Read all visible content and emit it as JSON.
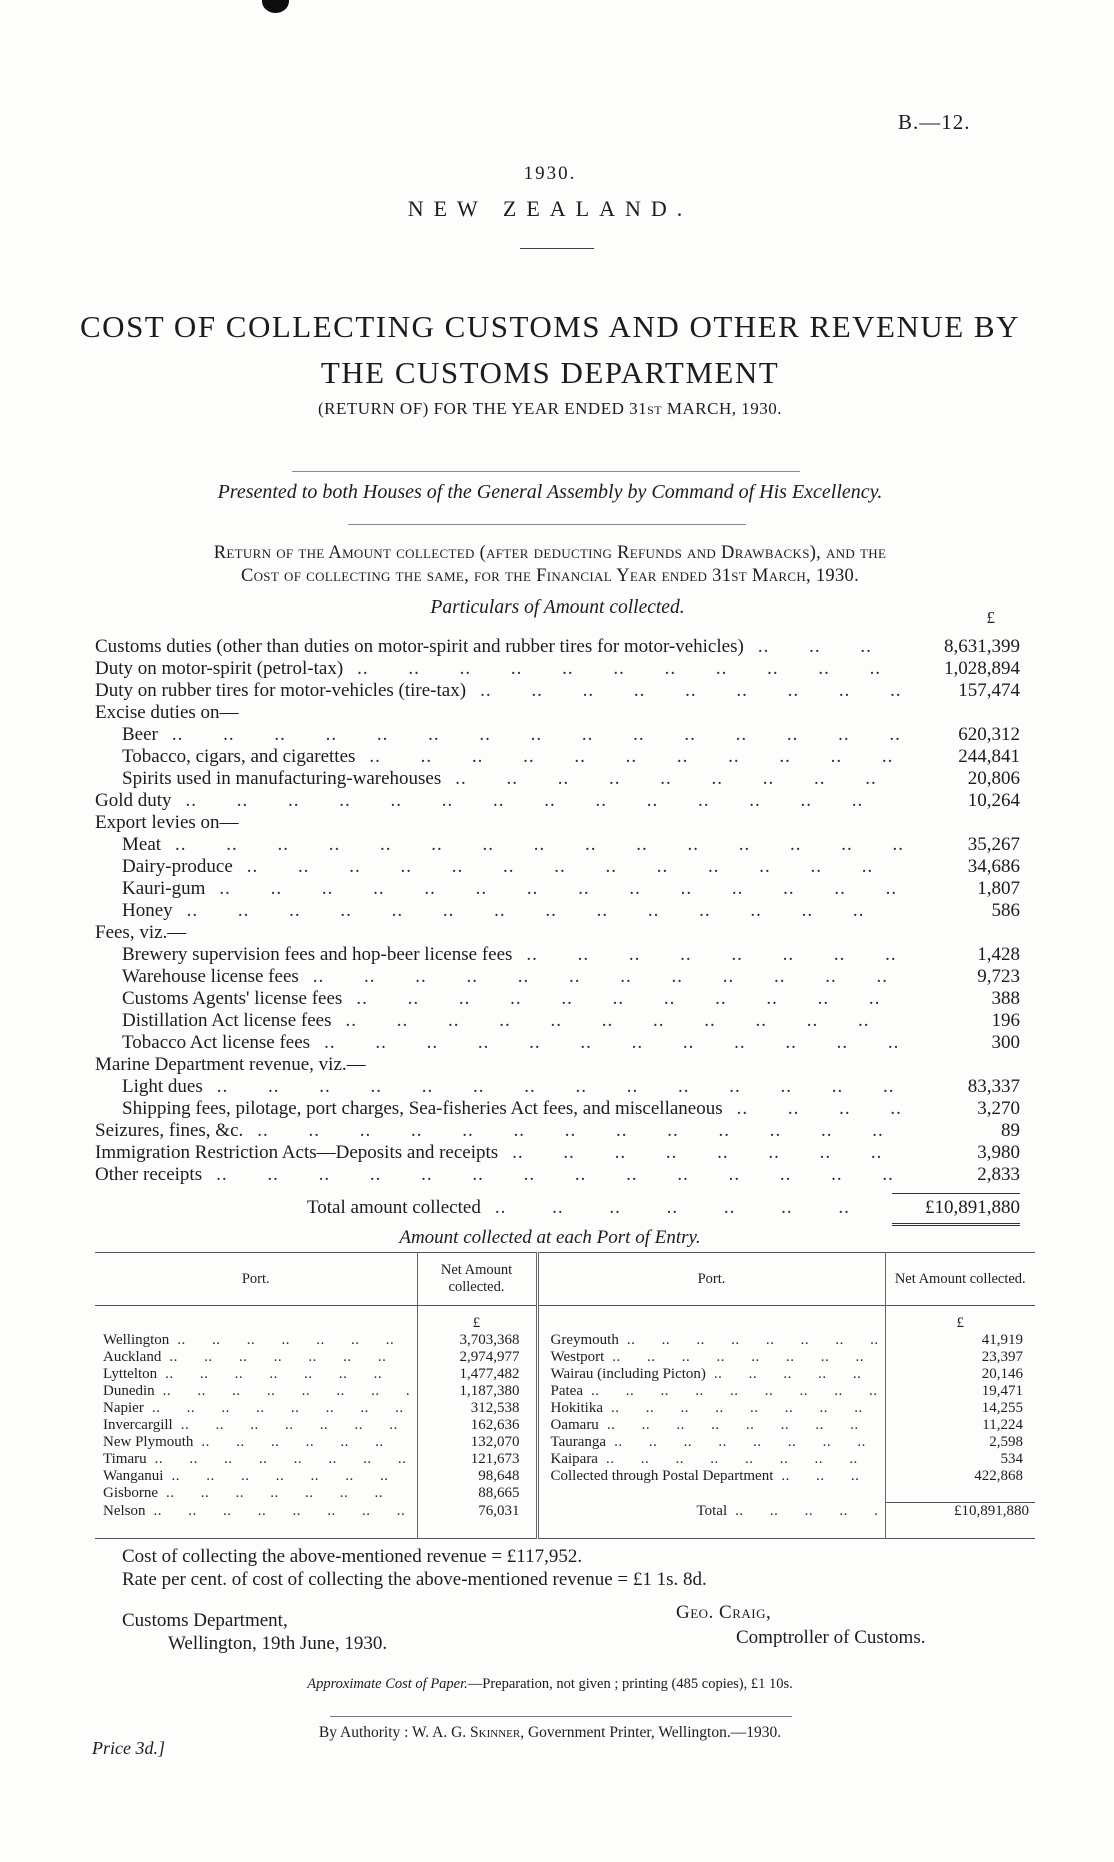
{
  "header": {
    "doc_ref": "B.—12.",
    "year": "1930.",
    "country": "NEW ZEALAND.",
    "title_line1": "COST OF COLLECTING CUSTOMS AND OTHER REVENUE BY",
    "title_line2": "THE CUSTOMS DEPARTMENT",
    "subtitle": "(RETURN OF) FOR THE YEAR ENDED 31st MARCH, 1930.",
    "presented": "Presented to both Houses of the General Assembly by Command of His Excellency."
  },
  "return_heading": {
    "line1": "Return of the Amount collected (after deducting Refunds and Drawbacks), and the",
    "line2": "Cost of collecting the same, for the Financial Year ended 31st March, 1930."
  },
  "particulars": {
    "heading": "Particulars of Amount collected.",
    "currency_symbol": "£",
    "rows": [
      {
        "label": "Customs duties (other than duties on motor-spirit and rubber tires for motor-vehicles)",
        "value": "8,631,399",
        "indent": 0
      },
      {
        "label": "Duty on motor-spirit (petrol-tax)",
        "value": "1,028,894",
        "indent": 0
      },
      {
        "label": "Duty on rubber tires for motor-vehicles (tire-tax)",
        "value": "157,474",
        "indent": 0
      },
      {
        "label": "Excise duties on—",
        "value": "",
        "indent": 0
      },
      {
        "label": "Beer",
        "value": "620,312",
        "indent": 1
      },
      {
        "label": "Tobacco, cigars, and cigarettes",
        "value": "244,841",
        "indent": 1
      },
      {
        "label": "Spirits used in manufacturing-warehouses",
        "value": "20,806",
        "indent": 1
      },
      {
        "label": "Gold duty",
        "value": "10,264",
        "indent": 0
      },
      {
        "label": "Export levies on—",
        "value": "",
        "indent": 0
      },
      {
        "label": "Meat",
        "value": "35,267",
        "indent": 1
      },
      {
        "label": "Dairy-produce",
        "value": "34,686",
        "indent": 1
      },
      {
        "label": "Kauri-gum",
        "value": "1,807",
        "indent": 1
      },
      {
        "label": "Honey",
        "value": "586",
        "indent": 1
      },
      {
        "label": "Fees, viz.—",
        "value": "",
        "indent": 0
      },
      {
        "label": "Brewery supervision fees and hop-beer license fees",
        "value": "1,428",
        "indent": 1
      },
      {
        "label": "Warehouse license fees",
        "value": "9,723",
        "indent": 1
      },
      {
        "label": "Customs Agents' license fees",
        "value": "388",
        "indent": 1
      },
      {
        "label": "Distillation Act license fees",
        "value": "196",
        "indent": 1
      },
      {
        "label": "Tobacco Act license fees",
        "value": "300",
        "indent": 1
      },
      {
        "label": "Marine Department revenue, viz.—",
        "value": "",
        "indent": 0
      },
      {
        "label": "Light dues",
        "value": "83,337",
        "indent": 1
      },
      {
        "label": "Shipping fees, pilotage, port charges, Sea-fisheries Act fees, and miscellaneous",
        "value": "3,270",
        "indent": 1
      },
      {
        "label": "Seizures, fines, &c.",
        "value": "89",
        "indent": 0
      },
      {
        "label": "Immigration Restriction Acts—Deposits and receipts",
        "value": "3,980",
        "indent": 0
      },
      {
        "label": "Other receipts",
        "value": "2,833",
        "indent": 0
      }
    ],
    "total_label": "Total amount collected",
    "total_value": "£10,891,880"
  },
  "ports_table": {
    "caption": "Amount collected at each Port of Entry.",
    "col_headers": [
      "Port.",
      "Net Amount collected."
    ],
    "currency_symbol": "£",
    "left_rows": [
      {
        "port": "Wellington",
        "value": "3,703,368"
      },
      {
        "port": "Auckland",
        "value": "2,974,977"
      },
      {
        "port": "Lyttelton",
        "value": "1,477,482"
      },
      {
        "port": "Dunedin",
        "value": "1,187,380"
      },
      {
        "port": "Napier",
        "value": "312,538"
      },
      {
        "port": "Invercargill",
        "value": "162,636"
      },
      {
        "port": "New Plymouth",
        "value": "132,070"
      },
      {
        "port": "Timaru",
        "value": "121,673"
      },
      {
        "port": "Wanganui",
        "value": "98,648"
      },
      {
        "port": "Gisborne",
        "value": "88,665"
      },
      {
        "port": "Nelson",
        "value": "76,031"
      }
    ],
    "right_rows": [
      {
        "port": "Greymouth",
        "value": "41,919"
      },
      {
        "port": "Westport",
        "value": "23,397"
      },
      {
        "port": "Wairau (including Picton)",
        "value": "20,146"
      },
      {
        "port": "Patea",
        "value": "19,471"
      },
      {
        "port": "Hokitika",
        "value": "14,255"
      },
      {
        "port": "Oamaru",
        "value": "11,224"
      },
      {
        "port": "Tauranga",
        "value": "2,598"
      },
      {
        "port": "Kaipara",
        "value": "534"
      },
      {
        "port": "Collected through Postal Department",
        "value": "422,868"
      }
    ],
    "total_label": "Total",
    "total_value": "£10,891,880"
  },
  "footer": {
    "cost_line": "Cost of collecting the above-mentioned revenue = £117,952.",
    "rate_line": "Rate per cent. of cost of collecting the above-mentioned revenue = £1 1s. 8d.",
    "dept_line1": "Customs Department,",
    "dept_line2": "Wellington, 19th June, 1930.",
    "signature_name": "Geo. Craig,",
    "signature_title": "Comptroller of Customs.",
    "paper_cost_lead": "Approximate Cost of Paper.",
    "paper_cost_rest": "—Preparation, not given ; printing (485 copies), £1 10s.",
    "authority_lead": "By Authority : W. A. G. ",
    "authority_name": "Skinner",
    "authority_rest": ", Government Printer, Wellington.—1930.",
    "price": "Price 3d.]"
  }
}
